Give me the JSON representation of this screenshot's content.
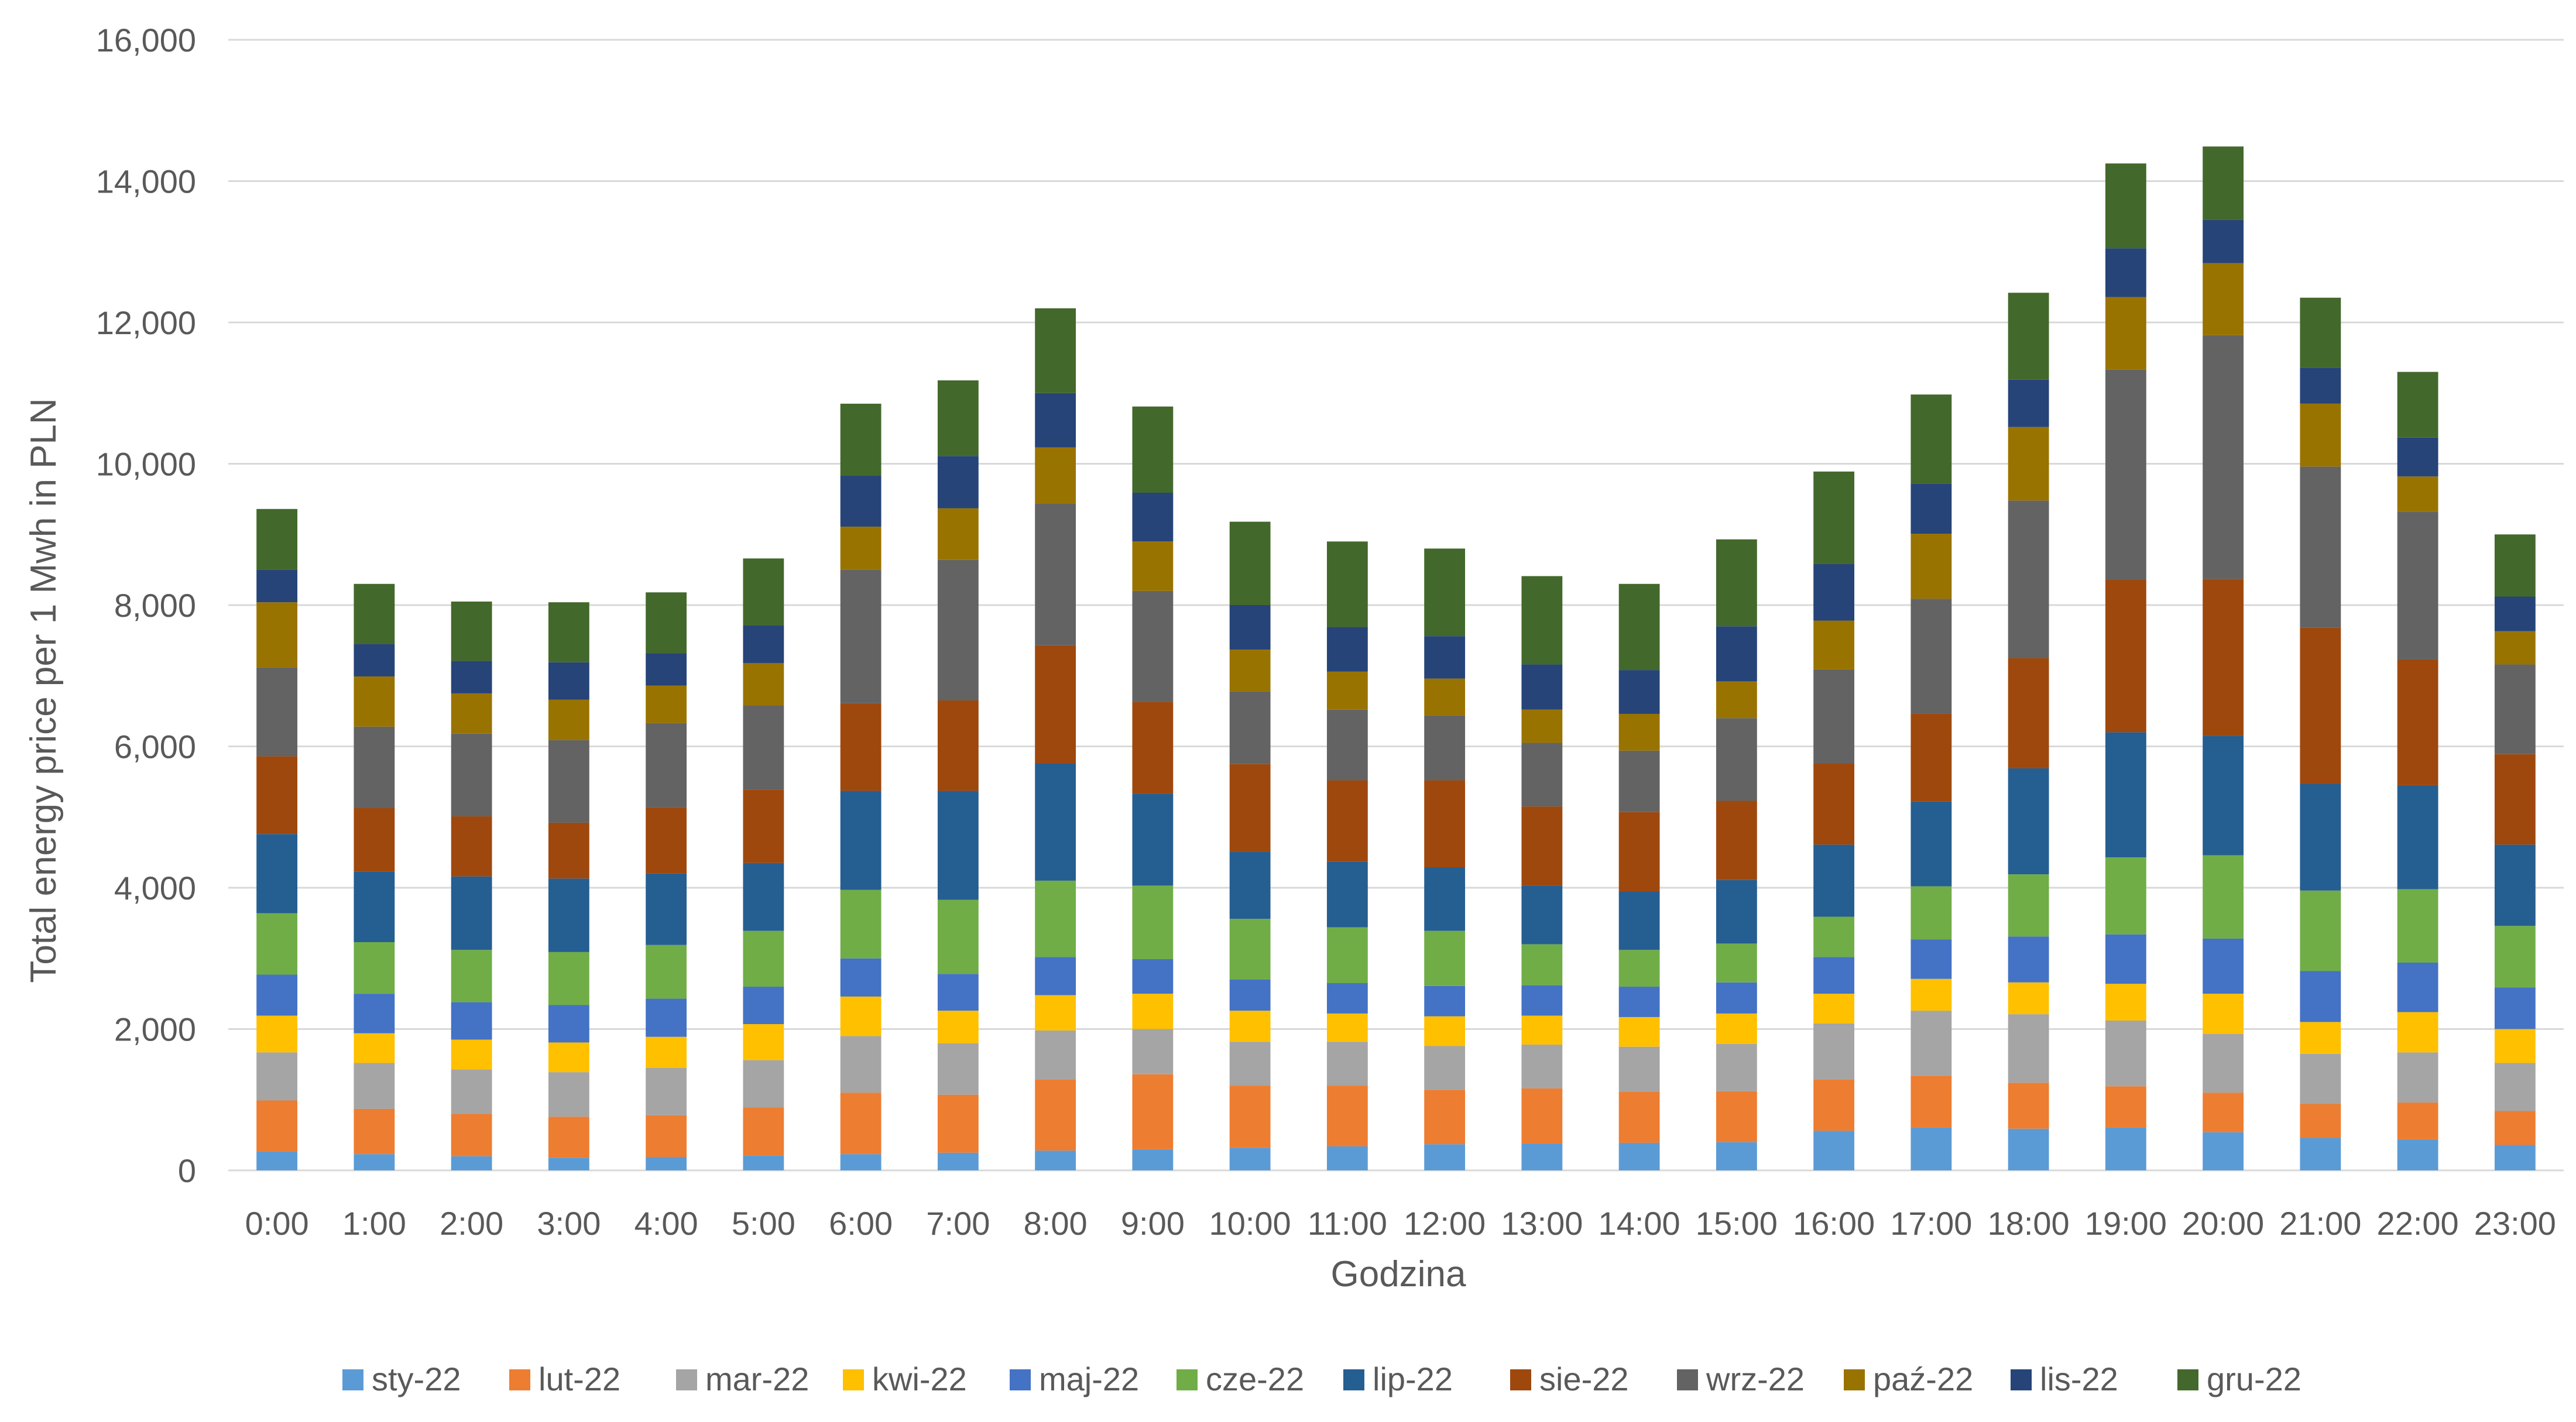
{
  "chart_data": {
    "type": "bar",
    "stacked": true,
    "title": "",
    "xlabel": "Godzina",
    "ylabel": "Total energy price per 1 Mwh in PLN",
    "ylim": [
      0,
      16000
    ],
    "yticks": [
      0,
      2000,
      4000,
      6000,
      8000,
      10000,
      12000,
      14000,
      16000
    ],
    "ytick_labels": [
      "0",
      "2,000",
      "4,000",
      "6,000",
      "8,000",
      "10,000",
      "12,000",
      "14,000",
      "16,000"
    ],
    "grid": "horizontal",
    "legend_position": "bottom",
    "categories": [
      "0:00",
      "1:00",
      "2:00",
      "3:00",
      "4:00",
      "5:00",
      "6:00",
      "7:00",
      "8:00",
      "9:00",
      "10:00",
      "11:00",
      "12:00",
      "13:00",
      "14:00",
      "15:00",
      "16:00",
      "17:00",
      "18:00",
      "19:00",
      "20:00",
      "21:00",
      "22:00",
      "23:00"
    ],
    "series": [
      {
        "name": "sty-22",
        "color": "#5B9BD5",
        "values": [
          270,
          230,
          200,
          180,
          190,
          210,
          230,
          250,
          280,
          300,
          320,
          340,
          370,
          380,
          390,
          400,
          560,
          610,
          590,
          610,
          540,
          460,
          440,
          360
        ]
      },
      {
        "name": "lut-22",
        "color": "#ED7D31",
        "values": [
          720,
          640,
          600,
          580,
          590,
          680,
          870,
          820,
          1010,
          1060,
          880,
          860,
          770,
          780,
          720,
          720,
          730,
          730,
          650,
          580,
          560,
          480,
          520,
          480
        ]
      },
      {
        "name": "mar-22",
        "color": "#A5A5A5",
        "values": [
          680,
          650,
          630,
          630,
          670,
          670,
          800,
          730,
          690,
          640,
          620,
          620,
          620,
          620,
          640,
          670,
          790,
          920,
          970,
          930,
          830,
          710,
          710,
          680
        ]
      },
      {
        "name": "kwi-22",
        "color": "#FFC000",
        "values": [
          520,
          420,
          420,
          420,
          440,
          510,
          560,
          460,
          500,
          500,
          440,
          400,
          420,
          410,
          420,
          430,
          420,
          450,
          450,
          520,
          570,
          450,
          570,
          480
        ]
      },
      {
        "name": "maj-22",
        "color": "#4472C4",
        "values": [
          580,
          560,
          530,
          530,
          540,
          530,
          540,
          520,
          540,
          490,
          440,
          430,
          430,
          430,
          430,
          440,
          520,
          560,
          650,
          700,
          780,
          720,
          700,
          590
        ]
      },
      {
        "name": "cze-22",
        "color": "#70AD47",
        "values": [
          870,
          730,
          740,
          750,
          760,
          790,
          970,
          1050,
          1080,
          1040,
          860,
          790,
          780,
          580,
          520,
          550,
          570,
          750,
          880,
          1090,
          1180,
          1140,
          1040,
          870
        ]
      },
      {
        "name": "lip-22",
        "color": "#255E91",
        "values": [
          1120,
          1000,
          1040,
          1040,
          1010,
          960,
          1400,
          1540,
          1660,
          1300,
          950,
          930,
          900,
          830,
          830,
          900,
          1020,
          1200,
          1500,
          1770,
          1690,
          1510,
          1470,
          1150
        ]
      },
      {
        "name": "sie-22",
        "color": "#9E480E",
        "values": [
          1100,
          900,
          850,
          790,
          940,
          1040,
          1240,
          1280,
          1670,
          1300,
          1240,
          1150,
          1230,
          1120,
          1120,
          1120,
          1150,
          1240,
          1560,
          2160,
          2220,
          2210,
          1780,
          1280
        ]
      },
      {
        "name": "wrz-22",
        "color": "#636363",
        "values": [
          1260,
          1150,
          1170,
          1170,
          1190,
          1190,
          1890,
          1990,
          2010,
          1570,
          1030,
          1000,
          920,
          900,
          870,
          1170,
          1330,
          1630,
          2230,
          2970,
          3450,
          2280,
          2090,
          1270
        ]
      },
      {
        "name": "paź-22",
        "color": "#997300",
        "values": [
          920,
          710,
          570,
          570,
          530,
          600,
          610,
          730,
          790,
          700,
          590,
          540,
          520,
          470,
          520,
          520,
          690,
          920,
          1040,
          1030,
          1020,
          890,
          500,
          470
        ]
      },
      {
        "name": "lis-22",
        "color": "#264478",
        "values": [
          460,
          460,
          460,
          530,
          460,
          530,
          720,
          740,
          770,
          690,
          630,
          630,
          600,
          640,
          620,
          780,
          800,
          710,
          670,
          690,
          610,
          510,
          550,
          490
        ]
      },
      {
        "name": "gru-22",
        "color": "#43682B",
        "values": [
          860,
          850,
          840,
          850,
          860,
          950,
          1020,
          1070,
          1200,
          1220,
          1180,
          1210,
          1240,
          1250,
          1220,
          1230,
          1310,
          1260,
          1230,
          1200,
          1040,
          990,
          930,
          880
        ]
      }
    ]
  }
}
